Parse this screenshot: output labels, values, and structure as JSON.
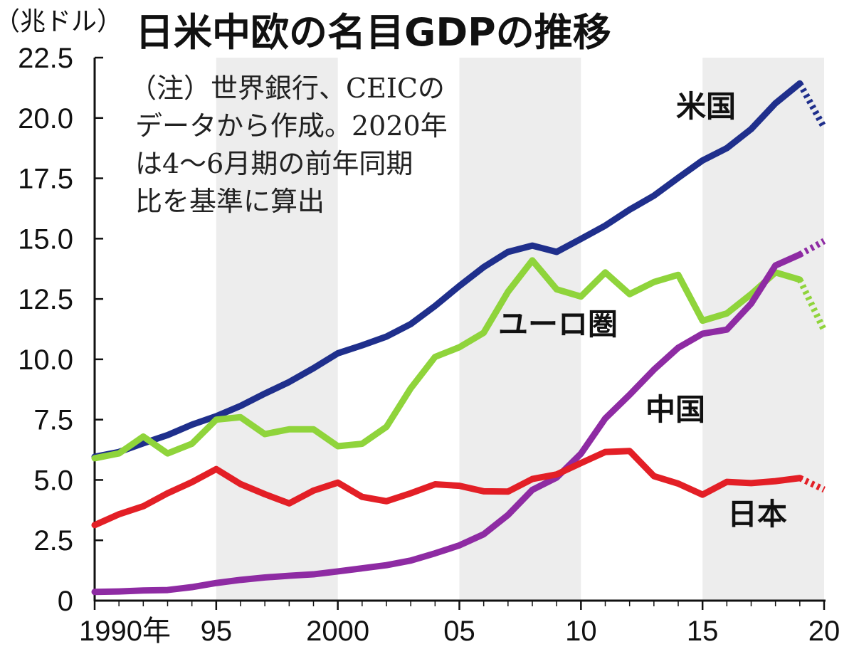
{
  "chart_data": {
    "type": "line",
    "title": "日米中欧の名目GDPの推移",
    "unit_label": "（兆ドル）",
    "note_lines": [
      "（注）世界銀行、CEICの",
      "データから作成。2020年",
      "は4〜6月期の前年同期",
      "比を基準に算出"
    ],
    "x_ticks": [
      {
        "value": 1990,
        "label": "1990年"
      },
      {
        "value": 1995,
        "label": "95"
      },
      {
        "value": 2000,
        "label": "2000"
      },
      {
        "value": 2005,
        "label": "05"
      },
      {
        "value": 2010,
        "label": "10"
      },
      {
        "value": 2015,
        "label": "15"
      },
      {
        "value": 2020,
        "label": "20"
      }
    ],
    "y_ticks": [
      "0",
      "2.5",
      "5.0",
      "7.5",
      "10.0",
      "12.5",
      "15.0",
      "17.5",
      "20.0",
      "22.5"
    ],
    "xlim": [
      1990,
      2020
    ],
    "ylim": [
      0,
      22.5
    ],
    "shaded_bands": [
      [
        1995,
        2000
      ],
      [
        2005,
        2010
      ],
      [
        2015,
        2020
      ]
    ],
    "grid": false,
    "series": [
      {
        "name": "米国",
        "color": "#1f2f8c",
        "x": [
          1990,
          1991,
          1992,
          1993,
          1994,
          1995,
          1996,
          1997,
          1998,
          1999,
          2000,
          2001,
          2002,
          2003,
          2004,
          2005,
          2006,
          2007,
          2008,
          2009,
          2010,
          2011,
          2012,
          2013,
          2014,
          2015,
          2016,
          2017,
          2018,
          2019
        ],
        "values": [
          5.96,
          6.16,
          6.52,
          6.86,
          7.29,
          7.64,
          8.07,
          8.58,
          9.06,
          9.63,
          10.25,
          10.58,
          10.94,
          11.46,
          12.21,
          13.04,
          13.82,
          14.45,
          14.71,
          14.45,
          14.99,
          15.54,
          16.2,
          16.78,
          17.52,
          18.24,
          18.75,
          19.54,
          20.61,
          21.43
        ],
        "projection": {
          "x": [
            2019,
            2020
          ],
          "values": [
            21.43,
            19.6
          ]
        }
      },
      {
        "name": "ユーロ圏",
        "color": "#8fd43b",
        "x": [
          1990,
          1991,
          1992,
          1993,
          1994,
          1995,
          1996,
          1997,
          1998,
          1999,
          2000,
          2001,
          2002,
          2003,
          2004,
          2005,
          2006,
          2007,
          2008,
          2009,
          2010,
          2011,
          2012,
          2013,
          2014,
          2015,
          2016,
          2017,
          2018,
          2019
        ],
        "values": [
          5.9,
          6.1,
          6.8,
          6.1,
          6.5,
          7.5,
          7.6,
          6.9,
          7.1,
          7.1,
          6.4,
          6.5,
          7.2,
          8.8,
          10.1,
          10.5,
          11.1,
          12.8,
          14.1,
          12.9,
          12.6,
          13.6,
          12.7,
          13.2,
          13.5,
          11.6,
          11.9,
          12.7,
          13.6,
          13.3
        ],
        "projection": {
          "x": [
            2019,
            2020
          ],
          "values": [
            13.3,
            11.2
          ]
        }
      },
      {
        "name": "中国",
        "color": "#8e2ba3",
        "x": [
          1990,
          1991,
          1992,
          1993,
          1994,
          1995,
          1996,
          1997,
          1998,
          1999,
          2000,
          2001,
          2002,
          2003,
          2004,
          2005,
          2006,
          2007,
          2008,
          2009,
          2010,
          2011,
          2012,
          2013,
          2014,
          2015,
          2016,
          2017,
          2018,
          2019
        ],
        "values": [
          0.36,
          0.38,
          0.42,
          0.44,
          0.56,
          0.73,
          0.86,
          0.96,
          1.03,
          1.09,
          1.21,
          1.34,
          1.47,
          1.66,
          1.96,
          2.29,
          2.75,
          3.55,
          4.59,
          5.1,
          6.09,
          7.55,
          8.53,
          9.57,
          10.48,
          11.06,
          11.23,
          12.31,
          13.89,
          14.34
        ],
        "projection": {
          "x": [
            2019,
            2020
          ],
          "values": [
            14.34,
            14.9
          ]
        }
      },
      {
        "name": "日本",
        "color": "#e31f26",
        "x": [
          1990,
          1991,
          1992,
          1993,
          1994,
          1995,
          1996,
          1997,
          1998,
          1999,
          2000,
          2001,
          2002,
          2003,
          2004,
          2005,
          2006,
          2007,
          2008,
          2009,
          2010,
          2011,
          2012,
          2013,
          2014,
          2015,
          2016,
          2017,
          2018,
          2019
        ],
        "values": [
          3.13,
          3.58,
          3.91,
          4.45,
          4.91,
          5.45,
          4.83,
          4.41,
          4.03,
          4.56,
          4.89,
          4.3,
          4.12,
          4.45,
          4.82,
          4.76,
          4.53,
          4.52,
          5.04,
          5.23,
          5.7,
          6.16,
          6.2,
          5.16,
          4.85,
          4.39,
          4.92,
          4.87,
          4.95,
          5.08
        ],
        "projection": {
          "x": [
            2019,
            2020
          ],
          "values": [
            5.08,
            4.6
          ]
        }
      }
    ]
  }
}
